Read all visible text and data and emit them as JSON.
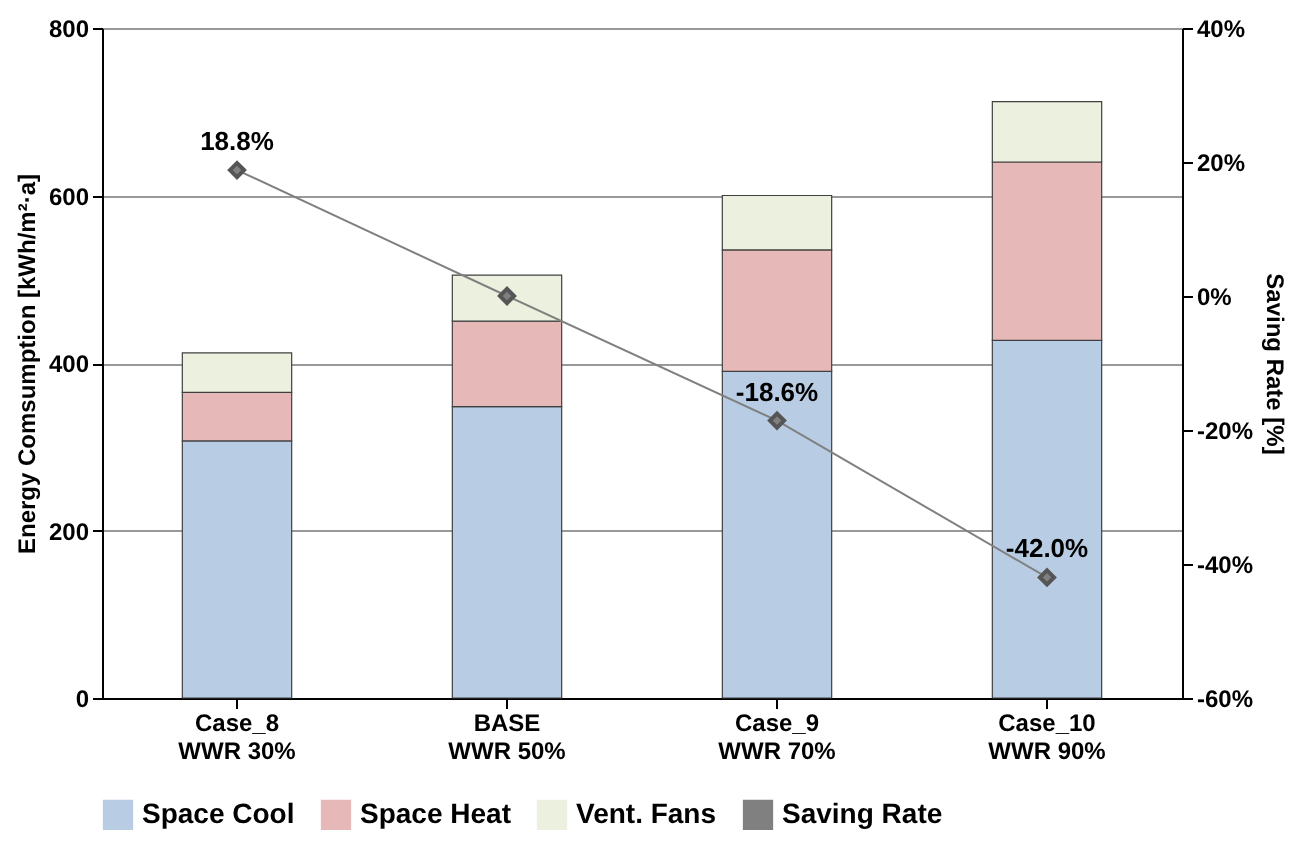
{
  "chart_data": {
    "type": "bar",
    "stacked": true,
    "ylabel": "Energy Comsumption [kWh/m²·a]",
    "y2label": "Saving Rate  [%]",
    "categories": [
      "Case_8\nWWR 30%",
      "BASE\nWWR 50%",
      "Case_9\nWWR 70%",
      "Case_10\nWWR 90%"
    ],
    "series": [
      {
        "name": "Space Cool",
        "color": "#b8cce4",
        "values": [
          307,
          348,
          390,
          427
        ]
      },
      {
        "name": "Space Heat",
        "color": "#e6b9b8",
        "values": [
          58,
          102,
          145,
          213
        ]
      },
      {
        "name": "Vent. Fans",
        "color": "#ebf1de",
        "values": [
          47,
          55,
          65,
          72
        ]
      },
      {
        "name": "Saving Rate",
        "type": "line",
        "axis": "y2",
        "color": "#808080",
        "values": [
          18.8,
          0,
          -18.6,
          -42.0
        ],
        "value_labels": [
          "18.8%",
          null,
          "-18.6%",
          "-42.0%"
        ]
      }
    ],
    "ylim": [
      0,
      800
    ],
    "yticks": [
      0,
      200,
      400,
      600,
      800
    ],
    "y2lim": [
      -60,
      40
    ],
    "y2ticks": [
      {
        "value": -60,
        "label": "-60%"
      },
      {
        "value": -40,
        "label": "-40%"
      },
      {
        "value": -20,
        "label": "-20%"
      },
      {
        "value": 0,
        "label": "0%"
      },
      {
        "value": 20,
        "label": "20%"
      },
      {
        "value": 40,
        "label": "40%"
      }
    ],
    "grid": "y",
    "legend": "bottom",
    "marker": "diamond",
    "line_style": "solid"
  }
}
